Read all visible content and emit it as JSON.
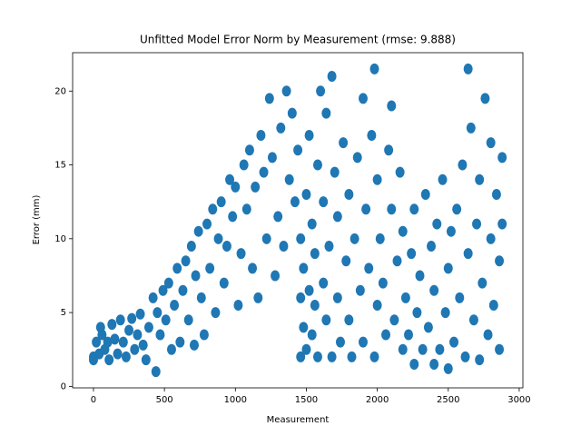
{
  "chart_data": {
    "type": "scatter",
    "title": "Unfitted Model Error Norm by Measurement (rmse: 9.888)",
    "x_label": "Measurement",
    "y_label": "Error (mm)",
    "xlim": [
      -147,
      3026
    ],
    "ylim": [
      -0.1,
      22.6
    ],
    "xticks": [
      0,
      500,
      1000,
      1500,
      2000,
      2500,
      3000
    ],
    "yticks": [
      0,
      5,
      10,
      15,
      20
    ],
    "x": [
      0,
      0,
      20,
      40,
      50,
      60,
      80,
      100,
      110,
      130,
      150,
      170,
      190,
      210,
      230,
      250,
      270,
      290,
      310,
      330,
      350,
      370,
      390,
      420,
      440,
      450,
      470,
      490,
      510,
      530,
      550,
      570,
      590,
      610,
      630,
      650,
      670,
      690,
      710,
      720,
      740,
      760,
      780,
      800,
      820,
      840,
      860,
      880,
      900,
      920,
      940,
      960,
      980,
      1000,
      1020,
      1040,
      1060,
      1080,
      1100,
      1120,
      1140,
      1160,
      1180,
      1200,
      1220,
      1240,
      1260,
      1280,
      1300,
      1320,
      1340,
      1360,
      1380,
      1400,
      1420,
      1440,
      1460,
      1460,
      1460,
      1480,
      1480,
      1500,
      1500,
      1520,
      1520,
      1540,
      1540,
      1560,
      1560,
      1580,
      1580,
      1600,
      1620,
      1620,
      1640,
      1640,
      1660,
      1680,
      1680,
      1700,
      1720,
      1720,
      1740,
      1760,
      1780,
      1800,
      1800,
      1820,
      1840,
      1860,
      1880,
      1900,
      1900,
      1920,
      1940,
      1960,
      1980,
      1980,
      2000,
      2000,
      2020,
      2040,
      2060,
      2080,
      2100,
      2100,
      2120,
      2140,
      2160,
      2180,
      2180,
      2200,
      2220,
      2240,
      2260,
      2260,
      2280,
      2300,
      2320,
      2340,
      2360,
      2380,
      2400,
      2400,
      2420,
      2440,
      2460,
      2480,
      2500,
      2500,
      2520,
      2540,
      2560,
      2580,
      2600,
      2620,
      2640,
      2640,
      2660,
      2680,
      2700,
      2720,
      2720,
      2740,
      2760,
      2780,
      2800,
      2800,
      2820,
      2840,
      2860,
      2860,
      2880,
      2880
    ],
    "series": [
      {
        "color": "#1f77b4",
        "values": [
          1.8,
          2.0,
          3.0,
          2.2,
          4.0,
          3.5,
          2.5,
          3.0,
          1.8,
          4.2,
          3.2,
          2.2,
          4.5,
          3.0,
          2.0,
          3.8,
          4.6,
          2.5,
          3.5,
          4.9,
          2.8,
          1.8,
          4.0,
          6.0,
          1.0,
          5.0,
          3.5,
          6.5,
          4.5,
          7.0,
          2.5,
          5.5,
          8.0,
          3.0,
          6.5,
          8.5,
          4.5,
          9.5,
          2.8,
          7.5,
          10.5,
          6.0,
          3.5,
          11.0,
          8.0,
          12.0,
          5.0,
          10.0,
          12.5,
          7.0,
          9.5,
          14.0,
          11.5,
          13.5,
          5.5,
          9.0,
          15.0,
          12.0,
          16.0,
          8.0,
          13.5,
          6.0,
          17.0,
          14.5,
          10.0,
          19.5,
          15.5,
          7.5,
          11.5,
          17.5,
          9.5,
          20.0,
          14.0,
          18.5,
          12.5,
          16.0,
          2.0,
          6.0,
          10.0,
          4.0,
          8.0,
          2.5,
          13.0,
          6.5,
          17.0,
          3.5,
          11.0,
          5.5,
          9.0,
          2.0,
          15.0,
          20.0,
          7.0,
          12.5,
          4.5,
          18.5,
          9.5,
          21.0,
          2.0,
          14.5,
          6.0,
          11.5,
          3.0,
          16.5,
          8.5,
          13.0,
          4.5,
          2.0,
          10.0,
          15.5,
          6.5,
          19.5,
          3.0,
          12.0,
          8.0,
          17.0,
          21.5,
          2.0,
          14.0,
          5.5,
          10.0,
          7.0,
          3.5,
          16.0,
          19.0,
          12.0,
          4.5,
          8.5,
          14.5,
          2.5,
          10.5,
          6.0,
          3.5,
          9.0,
          1.5,
          12.0,
          5.0,
          7.5,
          2.5,
          13.0,
          4.0,
          9.5,
          1.5,
          6.5,
          11.0,
          2.5,
          14.0,
          5.0,
          8.0,
          1.2,
          10.5,
          3.0,
          12.0,
          6.0,
          15.0,
          2.0,
          21.5,
          9.0,
          17.5,
          4.5,
          11.0,
          1.8,
          14.0,
          7.0,
          19.5,
          3.5,
          10.0,
          16.5,
          5.5,
          13.0,
          2.5,
          8.5,
          15.5,
          11.0
        ]
      }
    ]
  }
}
